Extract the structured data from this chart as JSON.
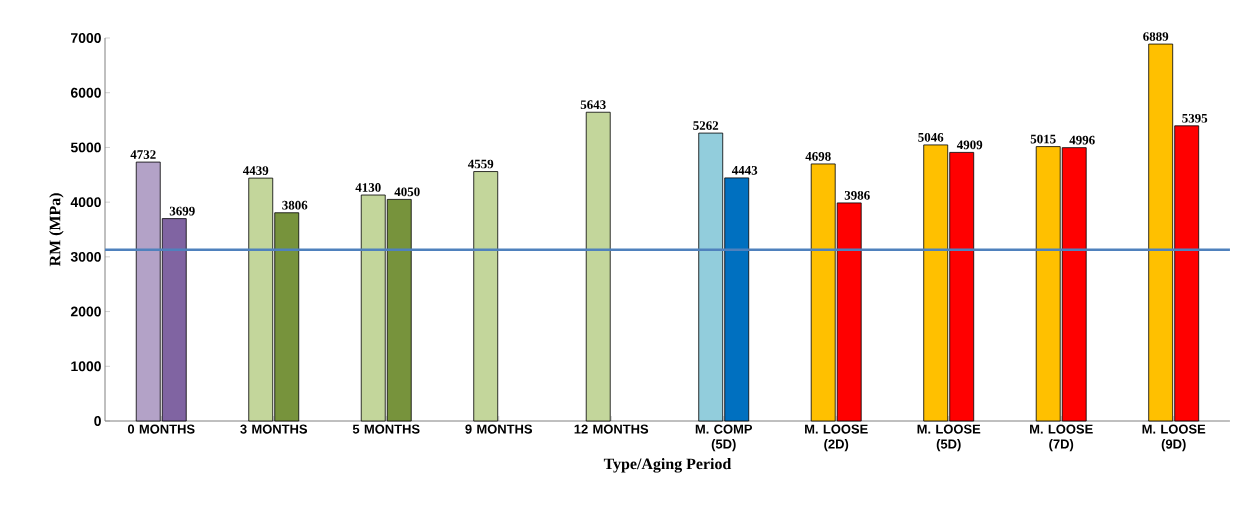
{
  "chart_data": {
    "type": "bar",
    "xlabel": "Type/Aging Period",
    "ylabel": "RM (MPa)",
    "categories": [
      "0 MONTHS",
      "3 MONTHS",
      "5 MONTHS",
      "9 MONTHS",
      "12 MONTHS",
      "M. COMP (5D)",
      "M. LOOSE (2D)",
      "M. LOOSE (5D)",
      "M. LOOSE (7D)",
      "M. LOOSE (9D)"
    ],
    "series": [
      {
        "values": [
          4732,
          4439,
          4130,
          4559,
          5643,
          5262,
          4698,
          5046,
          5015,
          6889
        ],
        "colors": [
          "#b3a2c7",
          "#c3d69b",
          "#c3d69b",
          "#c3d69b",
          "#c3d69b",
          "#92cddc",
          "#ffc000",
          "#ffc000",
          "#ffc000",
          "#ffc000"
        ]
      },
      {
        "values": [
          3699,
          3806,
          4050,
          null,
          null,
          4443,
          3986,
          4909,
          4996,
          5395
        ],
        "colors": [
          "#8064a2",
          "#77933c",
          "#77933c",
          null,
          null,
          "#0070c0",
          "#ff0000",
          "#ff0000",
          "#ff0000",
          "#ff0000"
        ]
      }
    ],
    "ylim": [
      0,
      7000
    ],
    "yticks": [
      0,
      1000,
      2000,
      3000,
      4000,
      5000,
      6000,
      7000
    ],
    "data_labels": true,
    "ref_lines": [
      {
        "axis": "y",
        "value": 3130,
        "color": "#4f81bd"
      }
    ]
  }
}
